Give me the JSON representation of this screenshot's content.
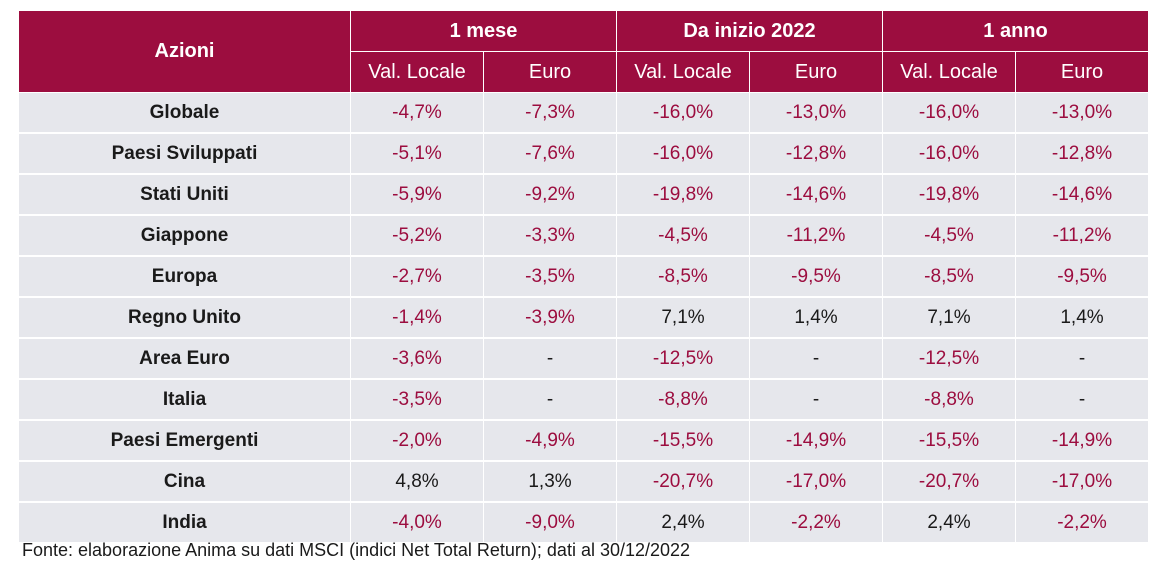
{
  "table": {
    "corner_label": "Azioni",
    "groups": [
      "1 mese",
      "Da inizio 2022",
      "1 anno"
    ],
    "subheaders": [
      "Val. Locale",
      "Euro",
      "Val. Locale",
      "Euro",
      "Val. Locale",
      "Euro"
    ],
    "rows": [
      {
        "label": "Globale",
        "values": [
          "-4,7%",
          "-7,3%",
          "-16,0%",
          "-13,0%",
          "-16,0%",
          "-13,0%"
        ]
      },
      {
        "label": "Paesi Sviluppati",
        "values": [
          "-5,1%",
          "-7,6%",
          "-16,0%",
          "-12,8%",
          "-16,0%",
          "-12,8%"
        ]
      },
      {
        "label": "Stati Uniti",
        "values": [
          "-5,9%",
          "-9,2%",
          "-19,8%",
          "-14,6%",
          "-19,8%",
          "-14,6%"
        ]
      },
      {
        "label": "Giappone",
        "values": [
          "-5,2%",
          "-3,3%",
          "-4,5%",
          "-11,2%",
          "-4,5%",
          "-11,2%"
        ]
      },
      {
        "label": "Europa",
        "values": [
          "-2,7%",
          "-3,5%",
          "-8,5%",
          "-9,5%",
          "-8,5%",
          "-9,5%"
        ]
      },
      {
        "label": "Regno Unito",
        "values": [
          "-1,4%",
          "-3,9%",
          "7,1%",
          "1,4%",
          "7,1%",
          "1,4%"
        ]
      },
      {
        "label": "Area Euro",
        "values": [
          "-3,6%",
          "-",
          "-12,5%",
          "-",
          "-12,5%",
          "-"
        ]
      },
      {
        "label": "Italia",
        "values": [
          "-3,5%",
          "-",
          "-8,8%",
          "-",
          "-8,8%",
          "-"
        ]
      },
      {
        "label": "Paesi Emergenti",
        "values": [
          "-2,0%",
          "-4,9%",
          "-15,5%",
          "-14,9%",
          "-15,5%",
          "-14,9%"
        ]
      },
      {
        "label": "Cina",
        "values": [
          "4,8%",
          "1,3%",
          "-20,7%",
          "-17,0%",
          "-20,7%",
          "-17,0%"
        ]
      },
      {
        "label": "India",
        "values": [
          "-4,0%",
          "-9,0%",
          "2,4%",
          "-2,2%",
          "2,4%",
          "-2,2%"
        ]
      }
    ]
  },
  "source_note": "Fonte: elaborazione Anima su dati MSCI (indici Net Total Return); dati al 30/12/2022",
  "colors": {
    "header_bg": "#9c0d3f",
    "negative": "#9c0d3f",
    "positive": "#1a1a1a",
    "row_bg": "#e6e7ec"
  },
  "chart_data": {
    "type": "table",
    "columns": [
      "Azioni",
      "1 mese Val. Locale",
      "1 mese Euro",
      "Da inizio 2022 Val. Locale",
      "Da inizio 2022 Euro",
      "1 anno Val. Locale",
      "1 anno Euro"
    ],
    "rows": [
      [
        "Globale",
        -4.7,
        -7.3,
        -16.0,
        -13.0,
        -16.0,
        -13.0
      ],
      [
        "Paesi Sviluppati",
        -5.1,
        -7.6,
        -16.0,
        -12.8,
        -16.0,
        -12.8
      ],
      [
        "Stati Uniti",
        -5.9,
        -9.2,
        -19.8,
        -14.6,
        -19.8,
        -14.6
      ],
      [
        "Giappone",
        -5.2,
        -3.3,
        -4.5,
        -11.2,
        -4.5,
        -11.2
      ],
      [
        "Europa",
        -2.7,
        -3.5,
        -8.5,
        -9.5,
        -8.5,
        -9.5
      ],
      [
        "Regno Unito",
        -1.4,
        -3.9,
        7.1,
        1.4,
        7.1,
        1.4
      ],
      [
        "Area Euro",
        -3.6,
        null,
        -12.5,
        null,
        -12.5,
        null
      ],
      [
        "Italia",
        -3.5,
        null,
        -8.8,
        null,
        -8.8,
        null
      ],
      [
        "Paesi Emergenti",
        -2.0,
        -4.9,
        -15.5,
        -14.9,
        -15.5,
        -14.9
      ],
      [
        "Cina",
        4.8,
        1.3,
        -20.7,
        -17.0,
        -20.7,
        -17.0
      ],
      [
        "India",
        -4.0,
        -9.0,
        2.4,
        -2.2,
        2.4,
        -2.2
      ]
    ]
  }
}
